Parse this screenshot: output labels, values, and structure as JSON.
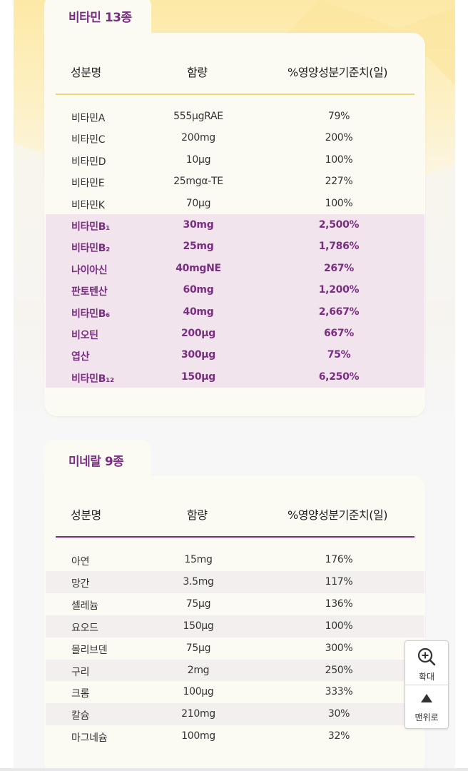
{
  "headers": {
    "name": "성분명",
    "amount": "함량",
    "percent": "%영양성분기준치(일)"
  },
  "vitamins": {
    "title": "비타민 13종",
    "rows": [
      {
        "name": "비타민A",
        "amount": "555μgRAE",
        "percent": "79%",
        "highlight": false
      },
      {
        "name": "비타민C",
        "amount": "200mg",
        "percent": "200%",
        "highlight": false
      },
      {
        "name": "비타민D",
        "amount": "10μg",
        "percent": "100%",
        "highlight": false
      },
      {
        "name": "비타민E",
        "amount": "25mgα-TE",
        "percent": "227%",
        "highlight": false
      },
      {
        "name": "비타민K",
        "amount": "70μg",
        "percent": "100%",
        "highlight": false
      },
      {
        "name": "비타민B₁",
        "amount": "30mg",
        "percent": "2,500%",
        "highlight": true
      },
      {
        "name": "비타민B₂",
        "amount": "25mg",
        "percent": "1,786%",
        "highlight": true
      },
      {
        "name": "나이아신",
        "amount": "40mgNE",
        "percent": "267%",
        "highlight": true
      },
      {
        "name": "판토텐산",
        "amount": "60mg",
        "percent": "1,200%",
        "highlight": true
      },
      {
        "name": "비타민B₆",
        "amount": "40mg",
        "percent": "2,667%",
        "highlight": true
      },
      {
        "name": "비오틴",
        "amount": "200μg",
        "percent": "667%",
        "highlight": true
      },
      {
        "name": "엽산",
        "amount": "300μg",
        "percent": "75%",
        "highlight": true
      },
      {
        "name": "비타민B₁₂",
        "amount": "150μg",
        "percent": "6,250%",
        "highlight": true
      }
    ]
  },
  "minerals": {
    "title": "미네랄 9종",
    "rows": [
      {
        "name": "아연",
        "amount": "15mg",
        "percent": "176%",
        "striped": false
      },
      {
        "name": "망간",
        "amount": "3.5mg",
        "percent": "117%",
        "striped": true
      },
      {
        "name": "셀레늄",
        "amount": "75μg",
        "percent": "136%",
        "striped": false
      },
      {
        "name": "요오드",
        "amount": "150μg",
        "percent": "100%",
        "striped": true
      },
      {
        "name": "몰리브덴",
        "amount": "75μg",
        "percent": "300%",
        "striped": false
      },
      {
        "name": "구리",
        "amount": "2mg",
        "percent": "250%",
        "striped": true
      },
      {
        "name": "크롬",
        "amount": "100μg",
        "percent": "333%",
        "striped": false
      },
      {
        "name": "칼슘",
        "amount": "210mg",
        "percent": "30%",
        "striped": true
      },
      {
        "name": "마그네슘",
        "amount": "100mg",
        "percent": "32%",
        "striped": false
      }
    ]
  },
  "float_panel": {
    "zoom_label": "확대",
    "zoom_icon": "zoom-in-icon",
    "top_label": "맨위로",
    "top_icon": "triangle-up-icon"
  },
  "colors": {
    "accent": "#7a2e82",
    "vitamin_rule": "#f1d57c",
    "mineral_rule": "#7a2e82",
    "highlight_bg": "#f1e4ed",
    "stripe_bg": "#f4efef",
    "card_bg": "#fcfbf3"
  }
}
